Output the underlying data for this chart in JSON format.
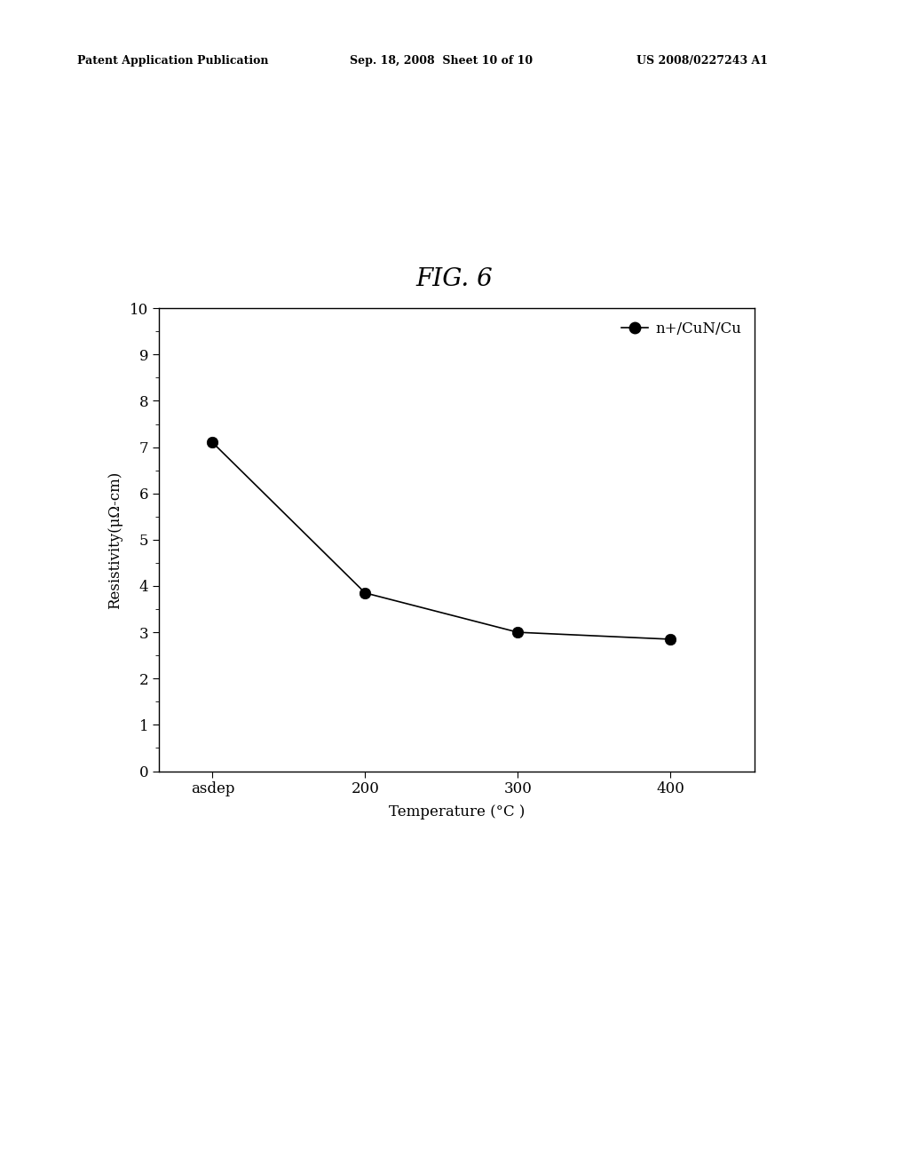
{
  "title": "FIG. 6",
  "xlabel": "Temperature (°C )",
  "ylabel": "Resistivity(μΩ-cm)",
  "x_labels": [
    "asdep",
    "200",
    "300",
    "400"
  ],
  "y_values": [
    7.1,
    3.85,
    3.0,
    2.85
  ],
  "ylim": [
    0,
    10
  ],
  "yticks": [
    0,
    1,
    2,
    3,
    4,
    5,
    6,
    7,
    8,
    9,
    10
  ],
  "legend_label": "n+/CuN/Cu",
  "line_color": "#000000",
  "marker_color": "#000000",
  "marker_size": 9,
  "background_color": "#ffffff",
  "title_fontsize": 20,
  "axis_fontsize": 12,
  "tick_fontsize": 12,
  "header_left": "Patent Application Publication",
  "header_mid": "Sep. 18, 2008  Sheet 10 of 10",
  "header_right": "US 2008/0227243 A1",
  "header_fontsize": 9
}
